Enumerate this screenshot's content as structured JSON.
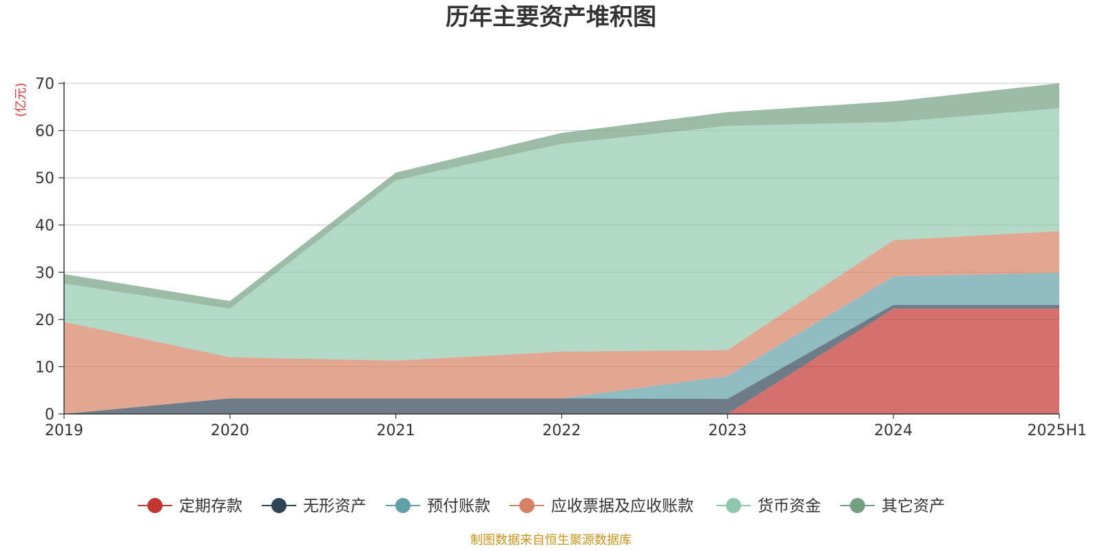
{
  "chart_data": {
    "type": "area",
    "title": "历年主要资产堆积图",
    "ylabel": "(亿元)",
    "source": "制图数据来自恒生聚源数据库",
    "categories": [
      "2019",
      "2020",
      "2021",
      "2022",
      "2023",
      "2024",
      "2025H1"
    ],
    "ylim": [
      0,
      70
    ],
    "yticks": [
      "0",
      "10",
      "20",
      "30",
      "40",
      "50",
      "60",
      "70"
    ],
    "stacked": true,
    "grid": true,
    "legend_position": "bottom",
    "series": [
      {
        "name": "定期存款",
        "color": "#c23531",
        "values": [
          0,
          0,
          0,
          0,
          0,
          22.3,
          22.3
        ]
      },
      {
        "name": "无形资产",
        "color": "#2f4554",
        "values": [
          0,
          3.3,
          3.3,
          3.3,
          3.2,
          0.8,
          0.8
        ]
      },
      {
        "name": "预付账款",
        "color": "#61a0a8",
        "values": [
          0,
          0,
          0,
          0,
          4.8,
          6.0,
          6.8
        ]
      },
      {
        "name": "应收票据及应收账款",
        "color": "#d48265",
        "values": [
          19.5,
          8.7,
          8.0,
          9.9,
          5.5,
          7.7,
          8.8
        ]
      },
      {
        "name": "货币资金",
        "color": "#91c7ae",
        "values": [
          8.1,
          10.3,
          38.2,
          44.0,
          47.5,
          25.0,
          26.0
        ]
      },
      {
        "name": "其它资产",
        "color": "#749f83",
        "values": [
          2.0,
          1.6,
          1.6,
          2.3,
          2.9,
          4.4,
          5.3
        ]
      }
    ]
  }
}
